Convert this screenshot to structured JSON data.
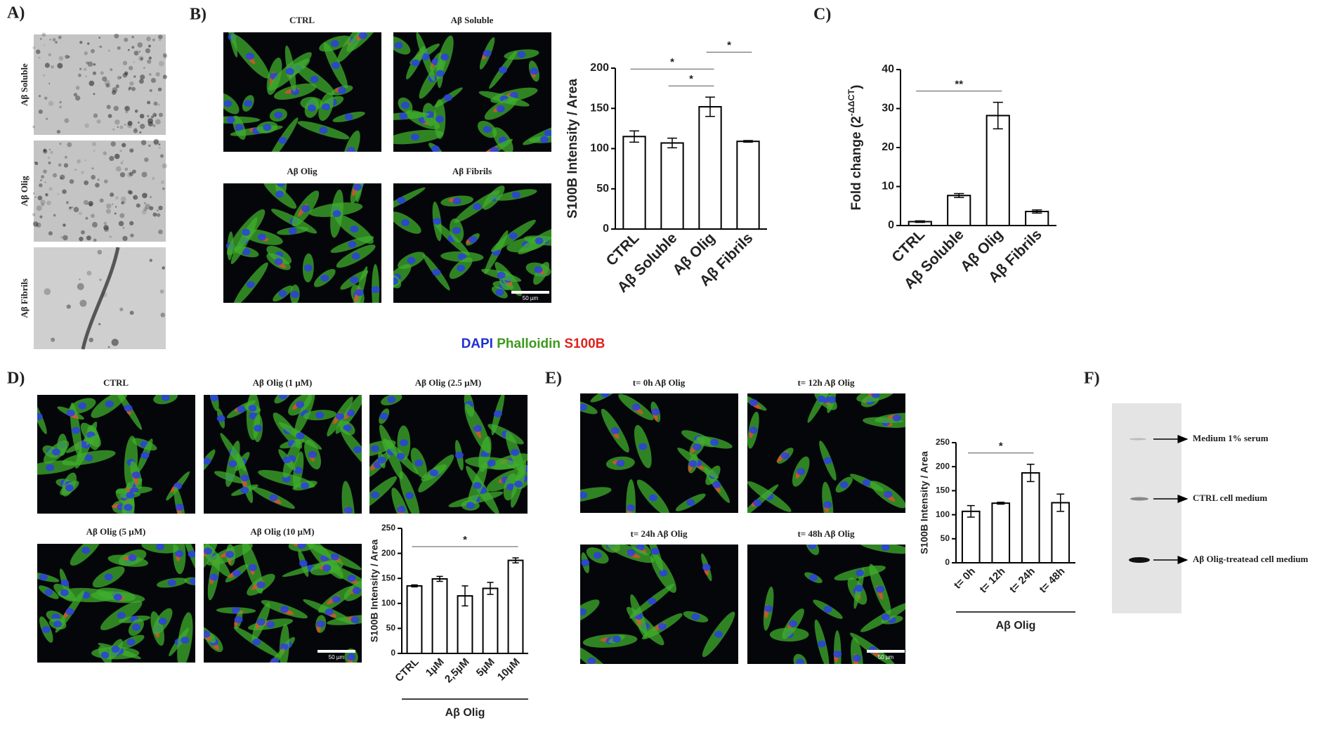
{
  "panel_labels": [
    "A)",
    "B)",
    "C)",
    "D)",
    "E)",
    "F)"
  ],
  "panel_a": {
    "images": [
      "Aβ Soluble",
      "Aβ Olig",
      "Aβ Fibrils"
    ]
  },
  "panel_b": {
    "images": [
      "CTRL",
      "Aβ Soluble",
      "Aβ Olig",
      "Aβ Fibrils"
    ],
    "scale_bar": "50 µm"
  },
  "stain_legend": [
    "DAPI",
    "Phalloidin",
    "S100B"
  ],
  "panel_d": {
    "images": [
      "CTRL",
      "Aβ Olig (1 µM)",
      "Aβ Olig (2.5 µM)",
      "Aβ Olig (5 µM)",
      "Aβ Olig (10 µM)"
    ],
    "scale_bar": "50 µm"
  },
  "panel_e": {
    "images": [
      "t= 0h Aβ Olig",
      "t= 12h Aβ Olig",
      "t= 24h Aβ Olig",
      "t= 48h Aβ Olig"
    ],
    "scale_bar": "50 µm"
  },
  "panel_f": {
    "labels": [
      "Medium 1% serum",
      "CTRL cell medium",
      "Aβ Olig-treatead cell medium"
    ]
  },
  "chart_data": [
    {
      "type": "bar",
      "y_label": "S100B Intensity / Area",
      "categories": [
        "CTRL",
        "Aβ Soluble",
        "Aβ Olig",
        "Aβ Fibrils"
      ],
      "values": [
        115,
        107,
        152,
        109
      ],
      "errors": [
        7,
        6,
        12,
        1
      ],
      "ylim": [
        0,
        200
      ],
      "yticks": [
        0,
        50,
        100,
        150,
        200
      ],
      "color": "#ffffff",
      "significance": [
        {
          "label": "*",
          "between": [
            "Aβ Soluble",
            "Aβ Olig"
          ]
        },
        {
          "label": "*",
          "between": [
            "CTRL",
            "Aβ Olig"
          ]
        },
        {
          "label": "*",
          "between": [
            "Aβ Olig",
            "Aβ Fibrils"
          ]
        }
      ]
    },
    {
      "type": "bar",
      "y_label": [
        "Fold change (2",
        "-ΔΔCT",
        ")"
      ],
      "categories": [
        "CTRL",
        "Aβ Soluble",
        "Aβ Olig",
        "Aβ Fibrils"
      ],
      "values": [
        1,
        7.7,
        28.2,
        3.6
      ],
      "errors": [
        0.2,
        0.5,
        3.4,
        0.4
      ],
      "ylim": [
        0,
        40
      ],
      "yticks": [
        0,
        10,
        20,
        30,
        40
      ],
      "color": "#ffffff",
      "significance": [
        {
          "label": "**",
          "between": [
            "CTRL",
            "Aβ Olig"
          ]
        }
      ]
    },
    {
      "type": "bar",
      "y_label": "S100B Intensity / Area",
      "group_label": "Aβ Olig",
      "categories": [
        "CTRL",
        "1µM",
        "2,5µM",
        "5µM",
        "10µM"
      ],
      "values": [
        135,
        149,
        115,
        130,
        186
      ],
      "errors": [
        2,
        5,
        20,
        12,
        5
      ],
      "ylim": [
        0,
        250
      ],
      "yticks": [
        0,
        50,
        100,
        150,
        200,
        250
      ],
      "color": "#ffffff",
      "significance": [
        {
          "label": "*",
          "between": [
            "CTRL",
            "10µM"
          ]
        }
      ]
    },
    {
      "type": "bar",
      "y_label": "S100B Intensity / Area",
      "group_label": "Aβ Olig",
      "categories": [
        "t= 0h",
        "t= 12h",
        "t= 24h",
        "t= 48h"
      ],
      "values": [
        107,
        124,
        187,
        125
      ],
      "errors": [
        12,
        2,
        18,
        18
      ],
      "ylim": [
        0,
        250
      ],
      "yticks": [
        0,
        50,
        100,
        150,
        200,
        250
      ],
      "color": "#ffffff",
      "significance": [
        {
          "label": "*",
          "between": [
            "t= 0h",
            "t= 24h"
          ]
        }
      ]
    }
  ]
}
